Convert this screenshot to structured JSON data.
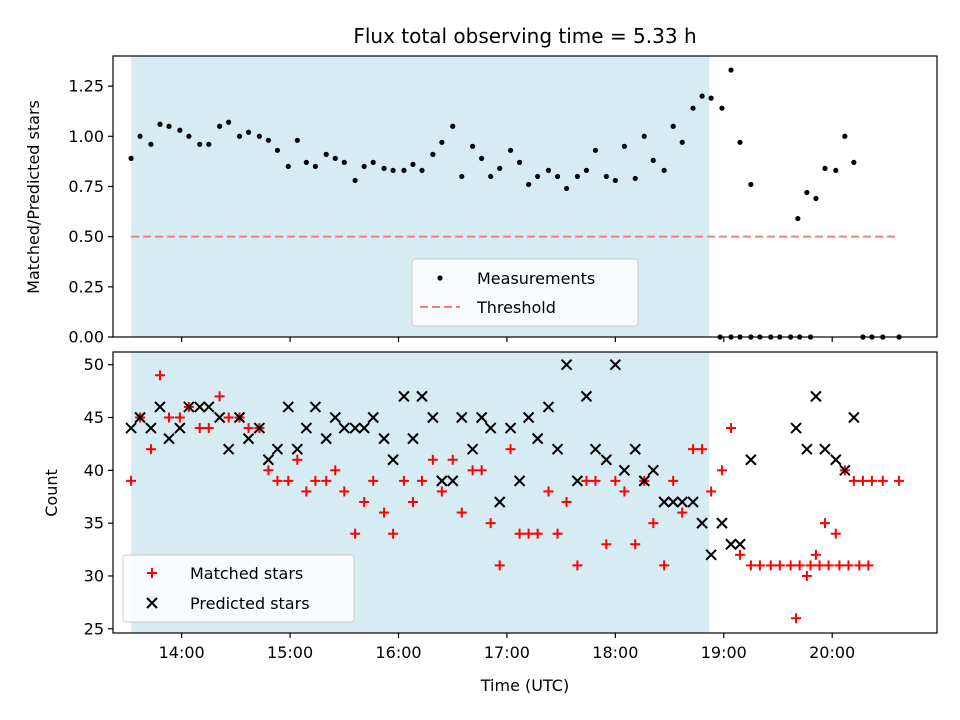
{
  "title": "Flux total observing time = 5.33 h",
  "colors": {
    "shade": "#add8e6",
    "threshold": "#f08080",
    "measurement": "#000000",
    "matched": "#ff0000",
    "predicted": "#000000"
  },
  "chart_data": [
    {
      "type": "scatter",
      "panel": "top",
      "ylabel": "Matched/Predicted stars",
      "xlim": [
        "13:22",
        "20:58"
      ],
      "ylim": [
        0,
        1.4
      ],
      "yticks": [
        "0.00",
        "0.25",
        "0.50",
        "0.75",
        "1.00",
        "1.25"
      ],
      "ytick_values": [
        0,
        0.25,
        0.5,
        0.75,
        1.0,
        1.25
      ],
      "xticks": [
        "14:00",
        "15:00",
        "16:00",
        "17:00",
        "18:00",
        "19:00",
        "20:00"
      ],
      "xtick_labels_shown": false,
      "shaded_interval": [
        "13:32",
        "18:52"
      ],
      "legend_loc": "lower center",
      "legend": [
        {
          "label": "Measurements",
          "marker": "dot"
        },
        {
          "label": "Threshold",
          "marker": "dashed-line"
        }
      ],
      "threshold": {
        "name": "Threshold",
        "x": [
          "13:32",
          "20:37"
        ],
        "y": 0.5
      },
      "series": [
        {
          "name": "Measurements",
          "points": [
            [
              "13:32",
              0.89
            ],
            [
              "13:37",
              1.0
            ],
            [
              "13:43",
              0.96
            ],
            [
              "13:48",
              1.06
            ],
            [
              "13:53",
              1.05
            ],
            [
              "13:59",
              1.03
            ],
            [
              "14:04",
              1.0
            ],
            [
              "14:10",
              0.96
            ],
            [
              "14:15",
              0.96
            ],
            [
              "14:21",
              1.05
            ],
            [
              "14:26",
              1.07
            ],
            [
              "14:32",
              1.0
            ],
            [
              "14:37",
              1.02
            ],
            [
              "14:43",
              1.0
            ],
            [
              "14:48",
              0.98
            ],
            [
              "14:53",
              0.93
            ],
            [
              "14:59",
              0.85
            ],
            [
              "15:04",
              0.98
            ],
            [
              "15:09",
              0.87
            ],
            [
              "15:14",
              0.85
            ],
            [
              "15:20",
              0.91
            ],
            [
              "15:25",
              0.89
            ],
            [
              "15:30",
              0.87
            ],
            [
              "15:36",
              0.78
            ],
            [
              "15:41",
              0.85
            ],
            [
              "15:46",
              0.87
            ],
            [
              "15:52",
              0.84
            ],
            [
              "15:57",
              0.83
            ],
            [
              "16:03",
              0.83
            ],
            [
              "16:08",
              0.86
            ],
            [
              "16:13",
              0.83
            ],
            [
              "16:19",
              0.91
            ],
            [
              "16:24",
              0.97
            ],
            [
              "16:30",
              1.05
            ],
            [
              "16:35",
              0.8
            ],
            [
              "16:41",
              0.95
            ],
            [
              "16:46",
              0.89
            ],
            [
              "16:51",
              0.8
            ],
            [
              "16:56",
              0.84
            ],
            [
              "17:02",
              0.93
            ],
            [
              "17:07",
              0.87
            ],
            [
              "17:12",
              0.76
            ],
            [
              "17:17",
              0.8
            ],
            [
              "17:23",
              0.83
            ],
            [
              "17:28",
              0.8
            ],
            [
              "17:33",
              0.74
            ],
            [
              "17:39",
              0.8
            ],
            [
              "17:44",
              0.83
            ],
            [
              "17:49",
              0.93
            ],
            [
              "17:55",
              0.8
            ],
            [
              "18:00",
              0.78
            ],
            [
              "18:05",
              0.95
            ],
            [
              "18:11",
              0.79
            ],
            [
              "18:16",
              1.0
            ],
            [
              "18:21",
              0.88
            ],
            [
              "18:27",
              0.83
            ],
            [
              "18:32",
              1.05
            ],
            [
              "18:37",
              0.97
            ],
            [
              "18:43",
              1.14
            ],
            [
              "18:48",
              1.2
            ],
            [
              "18:53",
              1.19
            ],
            [
              "18:59",
              1.14
            ],
            [
              "19:04",
              1.33
            ],
            [
              "19:09",
              0.97
            ],
            [
              "19:15",
              0.76
            ],
            [
              "18:58",
              0.0
            ],
            [
              "19:04",
              0.0
            ],
            [
              "19:09",
              0.0
            ],
            [
              "19:15",
              0.0
            ],
            [
              "19:20",
              0.0
            ],
            [
              "19:26",
              0.0
            ],
            [
              "19:31",
              0.0
            ],
            [
              "19:37",
              0.0
            ],
            [
              "19:42",
              0.0
            ],
            [
              "19:48",
              0.0
            ],
            [
              "19:41",
              0.59
            ],
            [
              "19:46",
              0.72
            ],
            [
              "19:51",
              0.69
            ],
            [
              "19:56",
              0.84
            ],
            [
              "20:02",
              0.83
            ],
            [
              "20:07",
              1.0
            ],
            [
              "20:12",
              0.87
            ],
            [
              "20:17",
              0.0
            ],
            [
              "20:22",
              0.0
            ],
            [
              "20:28",
              0.0
            ],
            [
              "20:37",
              0.0
            ]
          ]
        }
      ]
    },
    {
      "type": "scatter",
      "panel": "bottom",
      "xlabel": "Time (UTC)",
      "ylabel": "Count",
      "xlim": [
        "13:22",
        "20:58"
      ],
      "ylim": [
        24.6,
        51.2
      ],
      "yticks": [
        "25",
        "30",
        "35",
        "40",
        "45",
        "50"
      ],
      "ytick_values": [
        25,
        30,
        35,
        40,
        45,
        50
      ],
      "xticks": [
        "14:00",
        "15:00",
        "16:00",
        "17:00",
        "18:00",
        "19:00",
        "20:00"
      ],
      "shaded_interval": [
        "13:32",
        "18:52"
      ],
      "legend_loc": "lower left",
      "legend": [
        {
          "label": "Matched stars",
          "marker": "plus"
        },
        {
          "label": "Predicted stars",
          "marker": "x"
        }
      ],
      "series": [
        {
          "name": "Matched stars",
          "points": [
            [
              "13:32",
              39
            ],
            [
              "13:37",
              45
            ],
            [
              "13:43",
              42
            ],
            [
              "13:48",
              49
            ],
            [
              "13:53",
              45
            ],
            [
              "13:59",
              45
            ],
            [
              "14:04",
              46
            ],
            [
              "14:10",
              44
            ],
            [
              "14:15",
              44
            ],
            [
              "14:21",
              47
            ],
            [
              "14:26",
              45
            ],
            [
              "14:32",
              45
            ],
            [
              "14:37",
              44
            ],
            [
              "14:43",
              44
            ],
            [
              "14:48",
              40
            ],
            [
              "14:53",
              39
            ],
            [
              "14:59",
              39
            ],
            [
              "15:04",
              41
            ],
            [
              "15:09",
              38
            ],
            [
              "15:14",
              39
            ],
            [
              "15:20",
              39
            ],
            [
              "15:25",
              40
            ],
            [
              "15:30",
              38
            ],
            [
              "15:36",
              34
            ],
            [
              "15:41",
              37
            ],
            [
              "15:46",
              39
            ],
            [
              "15:52",
              36
            ],
            [
              "15:57",
              34
            ],
            [
              "16:03",
              39
            ],
            [
              "16:08",
              37
            ],
            [
              "16:13",
              39
            ],
            [
              "16:19",
              41
            ],
            [
              "16:24",
              38
            ],
            [
              "16:30",
              41
            ],
            [
              "16:35",
              36
            ],
            [
              "16:41",
              40
            ],
            [
              "16:46",
              40
            ],
            [
              "16:51",
              35
            ],
            [
              "16:56",
              31
            ],
            [
              "17:02",
              42
            ],
            [
              "17:07",
              34
            ],
            [
              "17:12",
              34
            ],
            [
              "17:17",
              34
            ],
            [
              "17:23",
              38
            ],
            [
              "17:28",
              34
            ],
            [
              "17:33",
              37
            ],
            [
              "17:39",
              31
            ],
            [
              "17:44",
              39
            ],
            [
              "17:49",
              39
            ],
            [
              "17:55",
              33
            ],
            [
              "18:00",
              39
            ],
            [
              "18:05",
              38
            ],
            [
              "18:11",
              33
            ],
            [
              "18:16",
              39
            ],
            [
              "18:21",
              35
            ],
            [
              "18:27",
              31
            ],
            [
              "18:32",
              39
            ],
            [
              "18:37",
              36
            ],
            [
              "18:43",
              42
            ],
            [
              "18:48",
              42
            ],
            [
              "18:53",
              38
            ],
            [
              "18:59",
              40
            ],
            [
              "19:04",
              44
            ],
            [
              "19:09",
              32
            ],
            [
              "19:15",
              31
            ],
            [
              "19:20",
              31
            ],
            [
              "19:26",
              31
            ],
            [
              "19:31",
              31
            ],
            [
              "19:37",
              31
            ],
            [
              "19:42",
              31
            ],
            [
              "19:48",
              31
            ],
            [
              "19:53",
              31
            ],
            [
              "19:58",
              31
            ],
            [
              "20:04",
              31
            ],
            [
              "20:09",
              31
            ],
            [
              "20:15",
              31
            ],
            [
              "20:20",
              31
            ],
            [
              "19:40",
              26
            ],
            [
              "19:46",
              30
            ],
            [
              "19:51",
              32
            ],
            [
              "19:56",
              35
            ],
            [
              "20:02",
              34
            ],
            [
              "20:07",
              40
            ],
            [
              "20:12",
              39
            ],
            [
              "20:17",
              39
            ],
            [
              "20:22",
              39
            ],
            [
              "20:28",
              39
            ],
            [
              "20:37",
              39
            ]
          ]
        },
        {
          "name": "Predicted stars",
          "points": [
            [
              "13:32",
              44
            ],
            [
              "13:37",
              45
            ],
            [
              "13:43",
              44
            ],
            [
              "13:48",
              46
            ],
            [
              "13:53",
              43
            ],
            [
              "13:59",
              44
            ],
            [
              "14:04",
              46
            ],
            [
              "14:10",
              46
            ],
            [
              "14:15",
              46
            ],
            [
              "14:21",
              45
            ],
            [
              "14:26",
              42
            ],
            [
              "14:32",
              45
            ],
            [
              "14:37",
              43
            ],
            [
              "14:43",
              44
            ],
            [
              "14:48",
              41
            ],
            [
              "14:53",
              42
            ],
            [
              "14:59",
              46
            ],
            [
              "15:04",
              42
            ],
            [
              "15:09",
              44
            ],
            [
              "15:14",
              46
            ],
            [
              "15:20",
              43
            ],
            [
              "15:25",
              45
            ],
            [
              "15:30",
              44
            ],
            [
              "15:36",
              44
            ],
            [
              "15:41",
              44
            ],
            [
              "15:46",
              45
            ],
            [
              "15:52",
              43
            ],
            [
              "15:57",
              41
            ],
            [
              "16:03",
              47
            ],
            [
              "16:08",
              43
            ],
            [
              "16:13",
              47
            ],
            [
              "16:19",
              45
            ],
            [
              "16:24",
              39
            ],
            [
              "16:30",
              39
            ],
            [
              "16:35",
              45
            ],
            [
              "16:41",
              42
            ],
            [
              "16:46",
              45
            ],
            [
              "16:51",
              44
            ],
            [
              "16:56",
              37
            ],
            [
              "17:02",
              44
            ],
            [
              "17:07",
              39
            ],
            [
              "17:12",
              45
            ],
            [
              "17:17",
              43
            ],
            [
              "17:23",
              46
            ],
            [
              "17:28",
              42
            ],
            [
              "17:33",
              50
            ],
            [
              "17:39",
              39
            ],
            [
              "17:44",
              47
            ],
            [
              "17:49",
              42
            ],
            [
              "17:55",
              41
            ],
            [
              "18:00",
              50
            ],
            [
              "18:05",
              40
            ],
            [
              "18:11",
              42
            ],
            [
              "18:16",
              39
            ],
            [
              "18:21",
              40
            ],
            [
              "18:27",
              37
            ],
            [
              "18:32",
              37
            ],
            [
              "18:37",
              37
            ],
            [
              "18:43",
              37
            ],
            [
              "18:48",
              35
            ],
            [
              "18:53",
              32
            ],
            [
              "18:59",
              35
            ],
            [
              "19:04",
              33
            ],
            [
              "19:09",
              33
            ],
            [
              "19:15",
              41
            ],
            [
              "19:40",
              44
            ],
            [
              "19:46",
              42
            ],
            [
              "19:51",
              47
            ],
            [
              "19:56",
              42
            ],
            [
              "20:02",
              41
            ],
            [
              "20:07",
              40
            ],
            [
              "20:12",
              45
            ]
          ]
        }
      ]
    }
  ]
}
